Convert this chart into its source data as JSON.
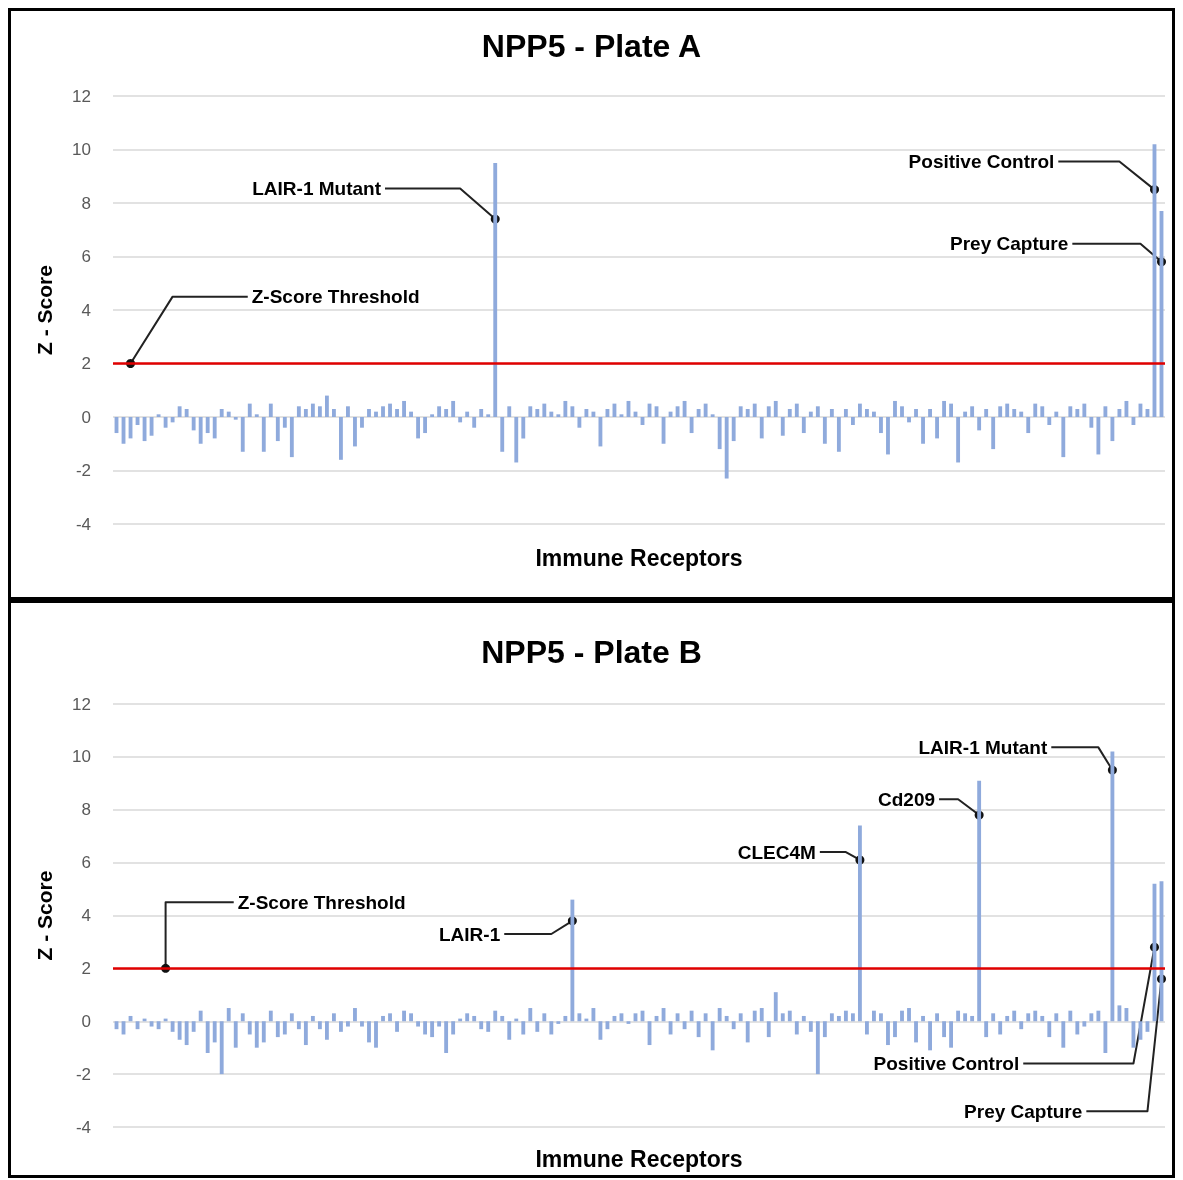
{
  "chart_data": [
    {
      "type": "bar",
      "title": "NPP5 - Plate A",
      "xlabel": "Immune Receptors",
      "ylabel": "Z - Score",
      "color": "#8faadc",
      "ylim": [
        -4,
        12
      ],
      "yticks": [
        -4,
        -2,
        0,
        2,
        4,
        6,
        8,
        10,
        12
      ],
      "grid": "y",
      "tick_labels": "y",
      "categories": [
        null,
        null,
        null,
        null,
        null,
        null,
        null,
        null,
        null,
        null,
        null,
        null,
        null,
        null,
        null,
        null,
        null,
        null,
        null,
        null,
        null,
        null,
        null,
        null,
        null,
        null,
        null,
        null,
        null,
        null,
        null,
        null,
        null,
        null,
        null,
        null,
        null,
        null,
        null,
        null,
        null,
        null,
        null,
        null,
        null,
        null,
        null,
        null,
        null,
        null,
        null,
        null,
        null,
        null,
        null,
        null,
        null,
        null,
        null,
        null,
        null,
        null,
        null,
        null,
        null,
        null,
        null,
        null,
        null,
        null,
        null,
        null,
        null,
        null,
        null,
        null,
        null,
        null,
        null,
        null,
        null,
        null,
        null,
        null,
        null,
        null,
        null,
        null,
        null,
        null,
        null,
        null,
        null,
        null,
        null,
        null,
        null,
        null,
        null,
        null,
        null,
        null,
        null,
        null,
        null,
        null,
        null,
        null,
        null,
        null,
        null,
        null,
        null,
        null,
        null,
        null,
        null,
        null,
        null,
        null,
        null,
        null,
        null,
        null,
        null,
        null,
        null,
        null,
        null,
        null,
        null,
        null,
        null,
        null,
        null,
        null,
        null,
        null,
        null,
        null,
        null,
        null,
        null,
        null,
        null,
        null,
        null,
        null,
        null,
        null
      ],
      "values": [
        -0.6,
        -1.0,
        -0.8,
        -0.3,
        -0.9,
        -0.7,
        0.1,
        -0.4,
        -0.2,
        0.4,
        0.3,
        -0.5,
        -1.0,
        -0.6,
        -0.8,
        0.3,
        0.2,
        -0.1,
        -1.3,
        0.5,
        0.1,
        -1.3,
        0.5,
        -0.9,
        -0.4,
        -1.5,
        0.4,
        0.3,
        0.5,
        0.4,
        0.8,
        0.3,
        -1.6,
        0.4,
        -1.1,
        -0.4,
        0.3,
        0.2,
        0.4,
        0.5,
        0.3,
        0.6,
        0.2,
        -0.8,
        -0.6,
        0.1,
        0.4,
        0.3,
        0.6,
        -0.2,
        0.2,
        -0.4,
        0.3,
        0.1,
        9.5,
        -1.3,
        0.4,
        -1.7,
        -0.8,
        0.4,
        0.3,
        0.5,
        0.2,
        0.1,
        0.6,
        0.4,
        -0.4,
        0.3,
        0.2,
        -1.1,
        0.3,
        0.5,
        0.1,
        0.6,
        0.2,
        -0.3,
        0.5,
        0.4,
        -1.0,
        0.2,
        0.4,
        0.6,
        -0.6,
        0.3,
        0.5,
        0.1,
        -1.2,
        -2.3,
        -0.9,
        0.4,
        0.3,
        0.5,
        -0.8,
        0.4,
        0.6,
        -0.7,
        0.3,
        0.5,
        -0.6,
        0.2,
        0.4,
        -1.0,
        0.3,
        -1.3,
        0.3,
        -0.3,
        0.5,
        0.3,
        0.2,
        -0.6,
        -1.4,
        0.6,
        0.4,
        -0.2,
        0.3,
        -1.0,
        0.3,
        -0.8,
        0.6,
        0.5,
        -1.7,
        0.2,
        0.4,
        -0.5,
        0.3,
        -1.2,
        0.4,
        0.5,
        0.3,
        0.2,
        -0.6,
        0.5,
        0.4,
        -0.3,
        0.2,
        -1.5,
        0.4,
        0.3,
        0.5,
        -0.4,
        -1.4,
        0.4,
        -0.9,
        0.3,
        0.6,
        -0.3,
        0.5,
        0.3,
        10.2,
        7.7
      ],
      "ref_lines": [
        {
          "axis": "y",
          "value": 2,
          "label": "Z-Score Threshold",
          "color": "#e00000",
          "line_style": "solid"
        }
      ],
      "annotations": [
        "LAIR-1 Mutant",
        "Positive Control",
        "Prey Capture"
      ]
    },
    {
      "type": "bar",
      "title": "NPP5 - Plate B",
      "xlabel": "Immune Receptors",
      "ylabel": "Z - Score",
      "color": "#8faadc",
      "ylim": [
        -4,
        12
      ],
      "yticks": [
        -4,
        -2,
        0,
        2,
        4,
        6,
        8,
        10,
        12
      ],
      "grid": "y",
      "tick_labels": "y",
      "categories": [
        null,
        null,
        null,
        null,
        null,
        null,
        null,
        null,
        null,
        null,
        null,
        null,
        null,
        null,
        null,
        null,
        null,
        null,
        null,
        null,
        null,
        null,
        null,
        null,
        null,
        null,
        null,
        null,
        null,
        null,
        null,
        null,
        null,
        null,
        null,
        null,
        null,
        null,
        null,
        null,
        null,
        null,
        null,
        null,
        null,
        null,
        null,
        null,
        null,
        null,
        null,
        null,
        null,
        null,
        null,
        null,
        null,
        null,
        null,
        null,
        null,
        null,
        null,
        null,
        null,
        null,
        null,
        null,
        null,
        null,
        null,
        null,
        null,
        null,
        null,
        null,
        null,
        null,
        null,
        null,
        null,
        null,
        null,
        null,
        null,
        null,
        null,
        null,
        null,
        null,
        null,
        null,
        null,
        null,
        null,
        null,
        null,
        null,
        null,
        null,
        null,
        null,
        null,
        null,
        null,
        null,
        null,
        null,
        null,
        null,
        null,
        null,
        null,
        null,
        null,
        null,
        null,
        null,
        null,
        null,
        null,
        null,
        null,
        null,
        null,
        null,
        null,
        null,
        null,
        null,
        null,
        null,
        null,
        null,
        null,
        null,
        null,
        null,
        null,
        null,
        null,
        null,
        null,
        null,
        null,
        null,
        null,
        null,
        null,
        null
      ],
      "values": [
        -0.3,
        -0.5,
        0.2,
        -0.3,
        0.1,
        -0.2,
        -0.3,
        0.1,
        -0.4,
        -0.7,
        -0.9,
        -0.4,
        0.4,
        -1.2,
        -0.8,
        -2.0,
        0.5,
        -1.0,
        0.3,
        -0.5,
        -1.0,
        -0.8,
        0.4,
        -0.6,
        -0.5,
        0.3,
        -0.3,
        -0.9,
        0.2,
        -0.3,
        -0.7,
        0.3,
        -0.4,
        -0.2,
        0.5,
        -0.2,
        -0.8,
        -1.0,
        0.2,
        0.3,
        -0.4,
        0.4,
        0.3,
        -0.2,
        -0.5,
        -0.6,
        -0.2,
        -1.2,
        -0.5,
        0.1,
        0.3,
        0.2,
        -0.3,
        -0.4,
        0.4,
        0.2,
        -0.7,
        0.1,
        -0.5,
        0.5,
        -0.4,
        0.3,
        -0.5,
        -0.1,
        0.2,
        4.6,
        0.3,
        0.1,
        0.5,
        -0.7,
        -0.3,
        0.2,
        0.3,
        -0.1,
        0.3,
        0.4,
        -0.9,
        0.2,
        0.5,
        -0.5,
        0.3,
        -0.3,
        0.4,
        -0.6,
        0.3,
        -1.1,
        0.5,
        0.2,
        -0.3,
        0.3,
        -0.8,
        0.4,
        0.5,
        -0.6,
        1.1,
        0.3,
        0.4,
        -0.5,
        0.2,
        -0.4,
        -2.0,
        -0.6,
        0.3,
        0.2,
        0.4,
        0.3,
        7.4,
        -0.5,
        0.4,
        0.3,
        -0.9,
        -0.6,
        0.4,
        0.5,
        -0.8,
        0.2,
        -1.1,
        0.3,
        -0.6,
        -1.0,
        0.4,
        0.3,
        0.2,
        9.1,
        -0.6,
        0.3,
        -0.5,
        0.2,
        0.4,
        -0.3,
        0.3,
        0.4,
        0.2,
        -0.6,
        0.3,
        -1.0,
        0.4,
        -0.5,
        -0.2,
        0.3,
        0.4,
        -1.2,
        10.2,
        0.6,
        0.5,
        -1.0,
        -0.7,
        -0.4,
        5.2,
        5.3
      ],
      "ref_lines": [
        {
          "axis": "y",
          "value": 2,
          "label": "Z-Score Threshold",
          "color": "#e00000",
          "line_style": "solid"
        }
      ],
      "annotations": [
        "LAIR-1",
        "CLEC4M",
        "Cd209",
        "LAIR-1 Mutant",
        "Positive Control",
        "Prey Capture"
      ]
    }
  ]
}
